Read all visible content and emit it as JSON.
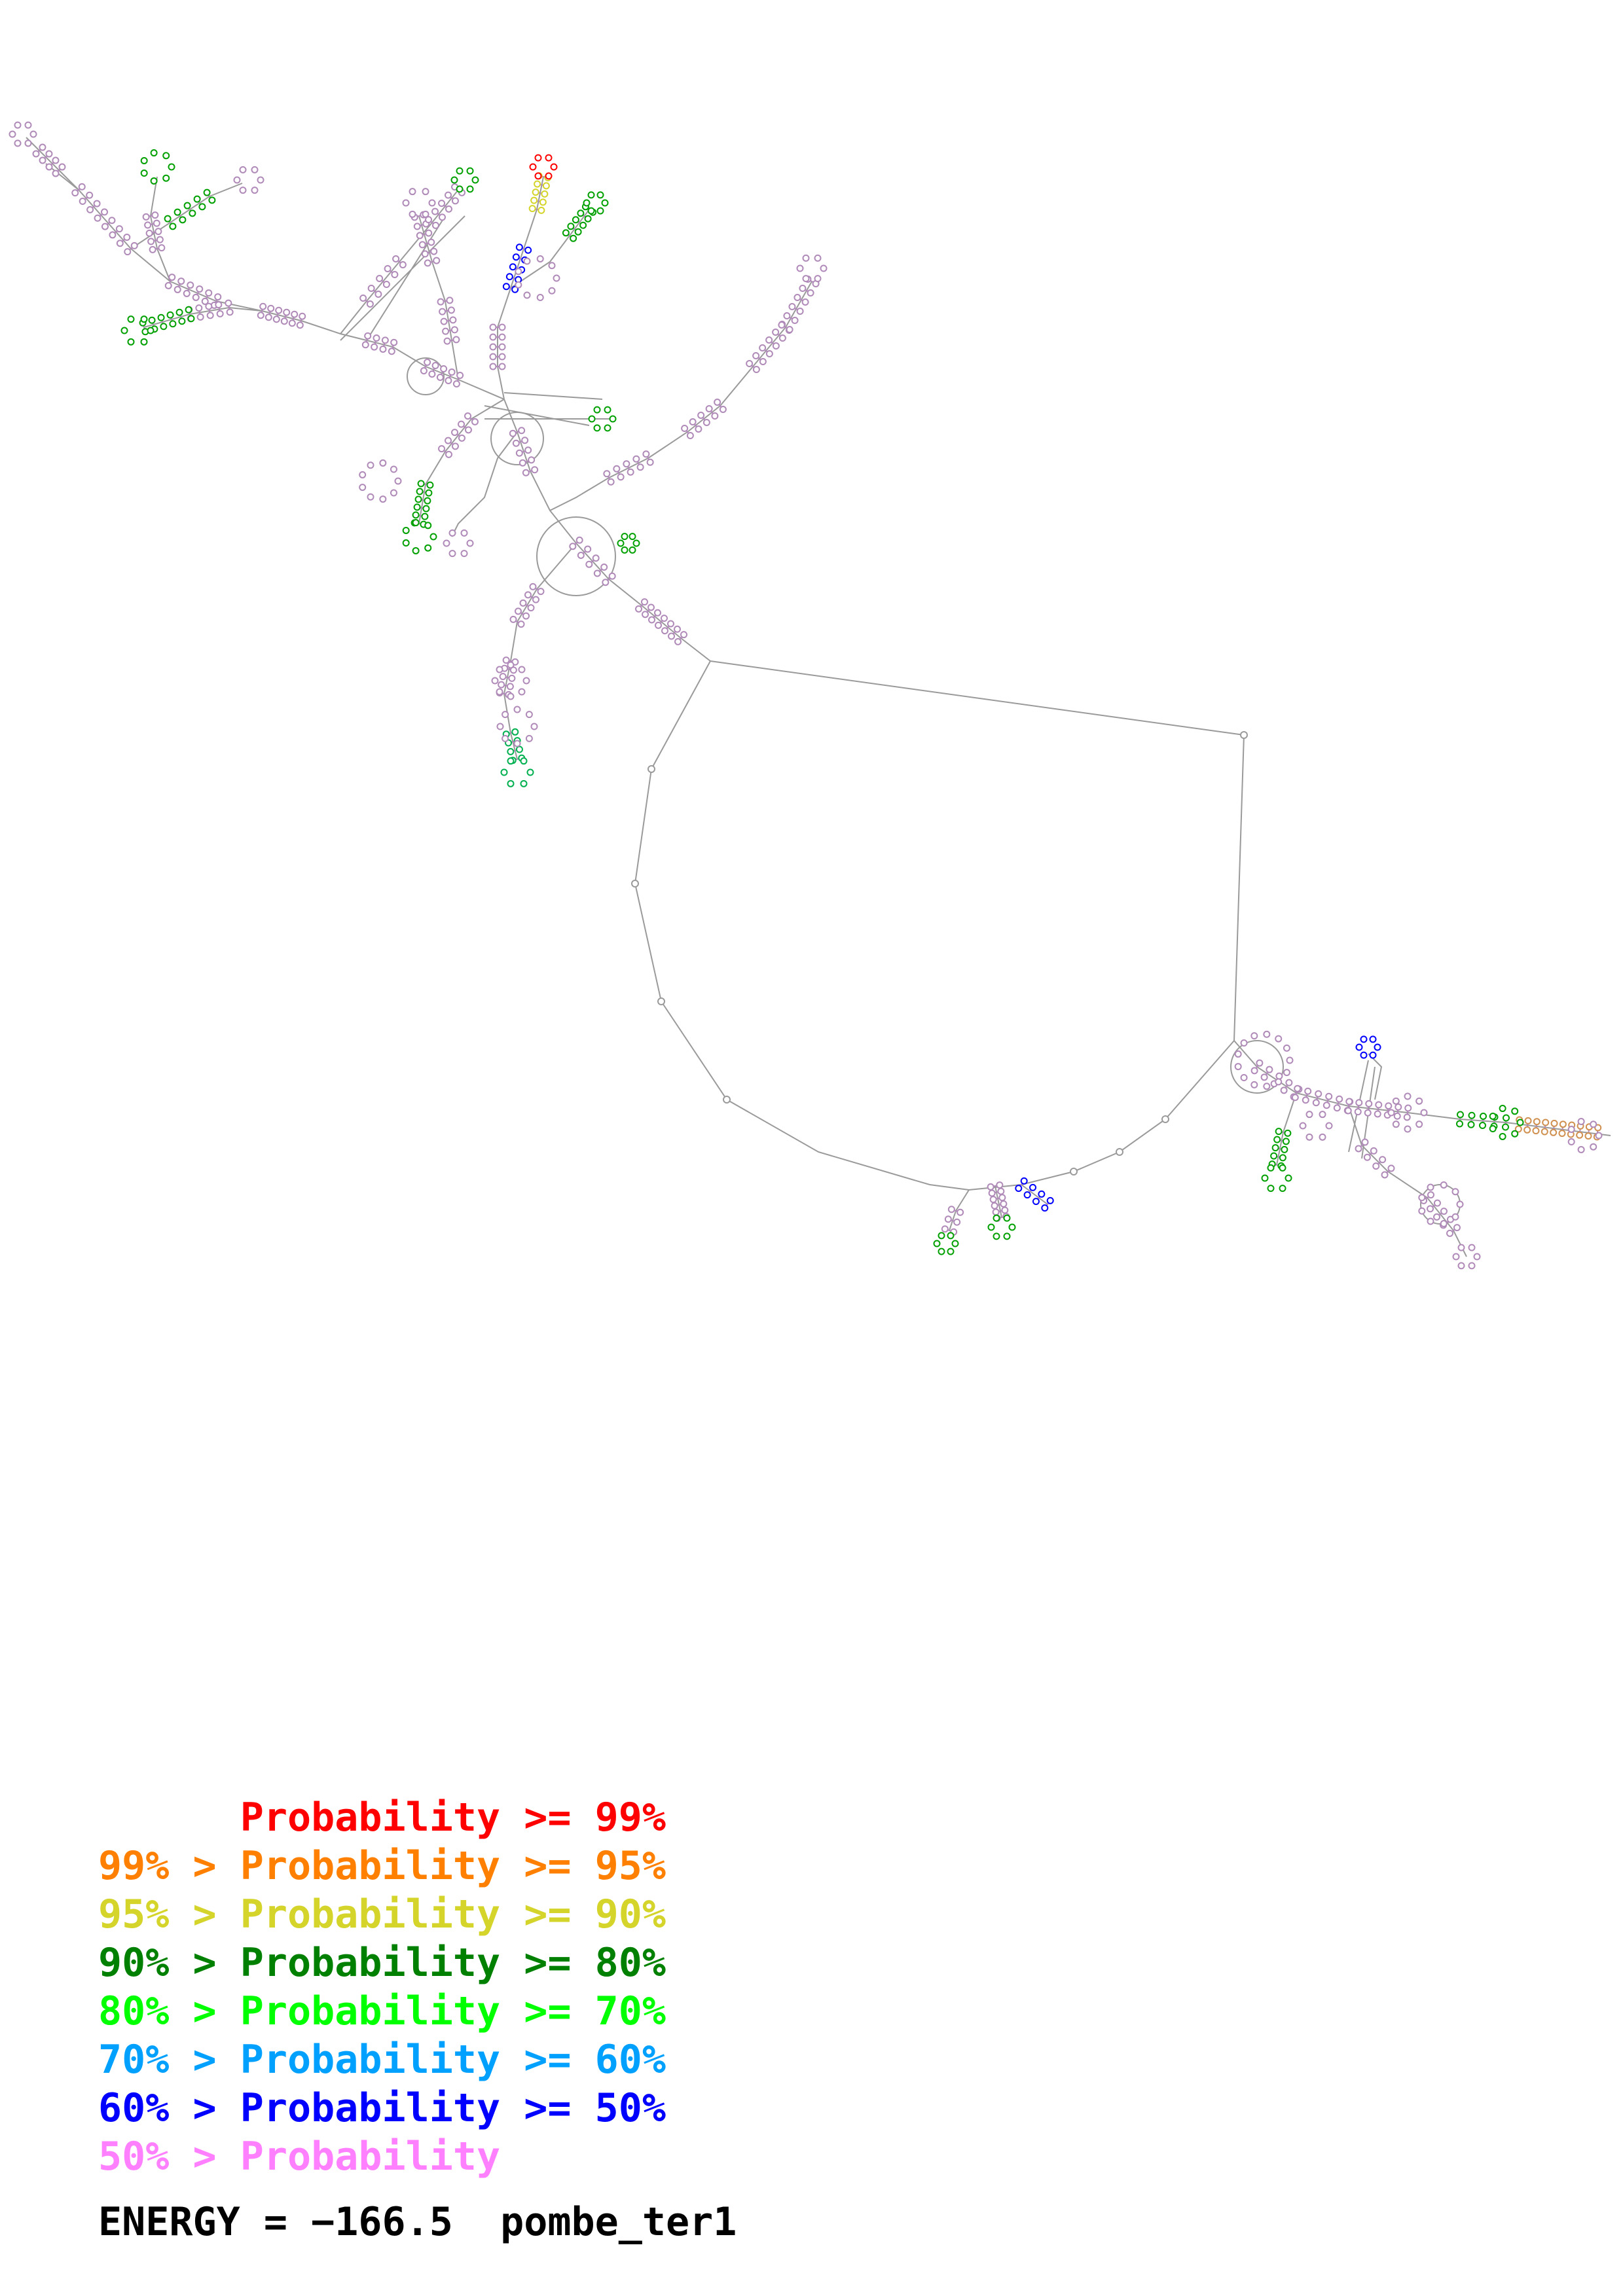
{
  "legend": [
    {
      "left": "",
      "sep": "",
      "label": "Probability",
      "op": ">=",
      "right": "99%",
      "color": "#ff0000"
    },
    {
      "left": "99%",
      "sep": ">",
      "label": "Probability",
      "op": ">=",
      "right": "95%",
      "color": "#ff8000"
    },
    {
      "left": "95%",
      "sep": ">",
      "label": "Probability",
      "op": ">=",
      "right": "90%",
      "color": "#d4d42a"
    },
    {
      "left": "90%",
      "sep": ">",
      "label": "Probability",
      "op": ">=",
      "right": "80%",
      "color": "#008000"
    },
    {
      "left": "80%",
      "sep": ">",
      "label": "Probability",
      "op": ">=",
      "right": "70%",
      "color": "#00ff00"
    },
    {
      "left": "70%",
      "sep": ">",
      "label": "Probability",
      "op": ">=",
      "right": "60%",
      "color": "#00a0ff"
    },
    {
      "left": "60%",
      "sep": ">",
      "label": "Probability",
      "op": ">=",
      "right": "50%",
      "color": "#0000ff"
    },
    {
      "left": "50%",
      "sep": ">",
      "label": "Probability",
      "op": "",
      "right": "",
      "color": "#ff80ff"
    }
  ],
  "footer": {
    "energy_label": "ENERGY =",
    "energy_value": "−166.5",
    "name": "pombe_ter1"
  },
  "structure": {
    "backbone_color": "#9a9a9a",
    "pair_color": "#b08ab8"
  }
}
